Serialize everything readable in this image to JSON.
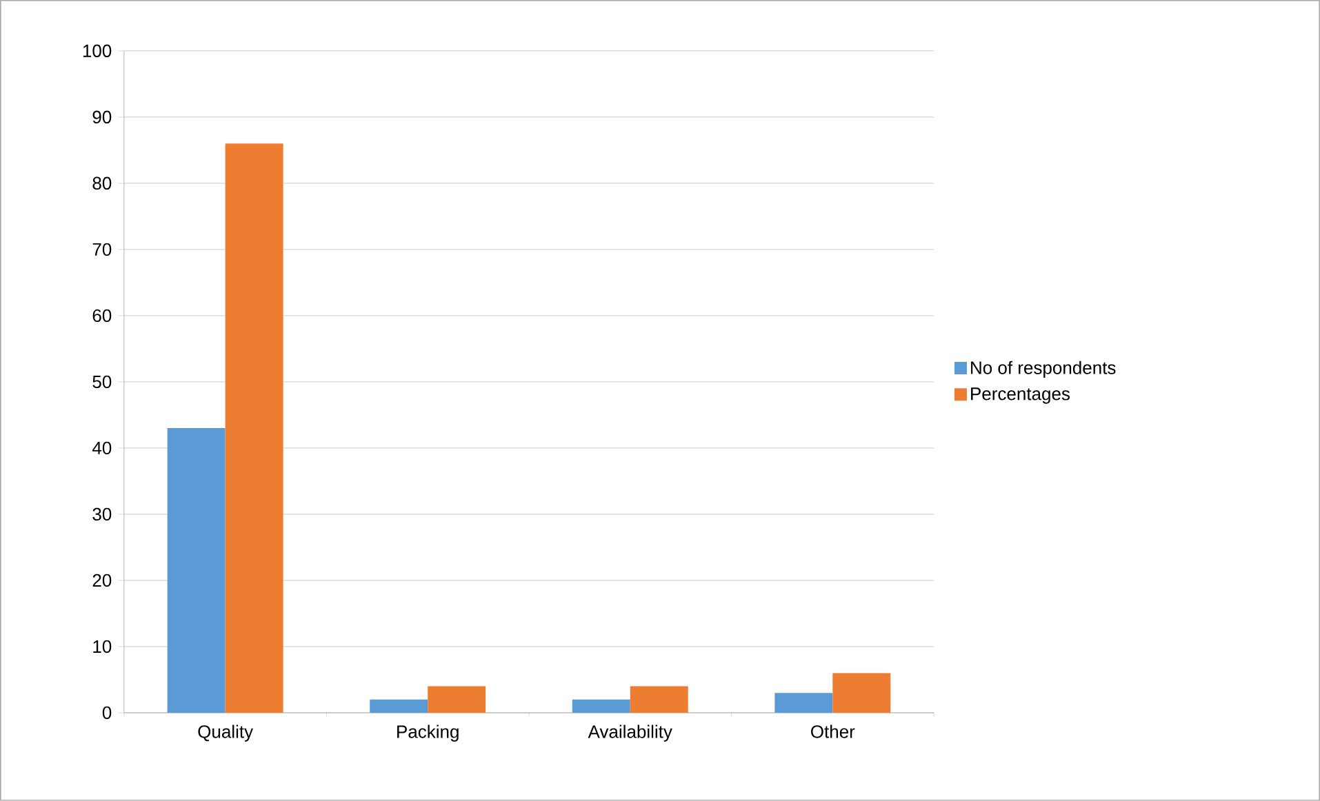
{
  "chart_data": {
    "type": "bar",
    "categories": [
      "Quality",
      "Packing",
      "Availability",
      "Other"
    ],
    "series": [
      {
        "name": "No of respondents",
        "color": "#5b9bd5",
        "values": [
          43,
          2,
          2,
          3
        ]
      },
      {
        "name": "Percentages",
        "color": "#ed7d31",
        "values": [
          86,
          4,
          4,
          6
        ]
      }
    ],
    "ylim": [
      0,
      100
    ],
    "yticks": [
      0,
      10,
      20,
      30,
      40,
      50,
      60,
      70,
      80,
      90,
      100
    ],
    "grid": "y",
    "legend": "right"
  }
}
